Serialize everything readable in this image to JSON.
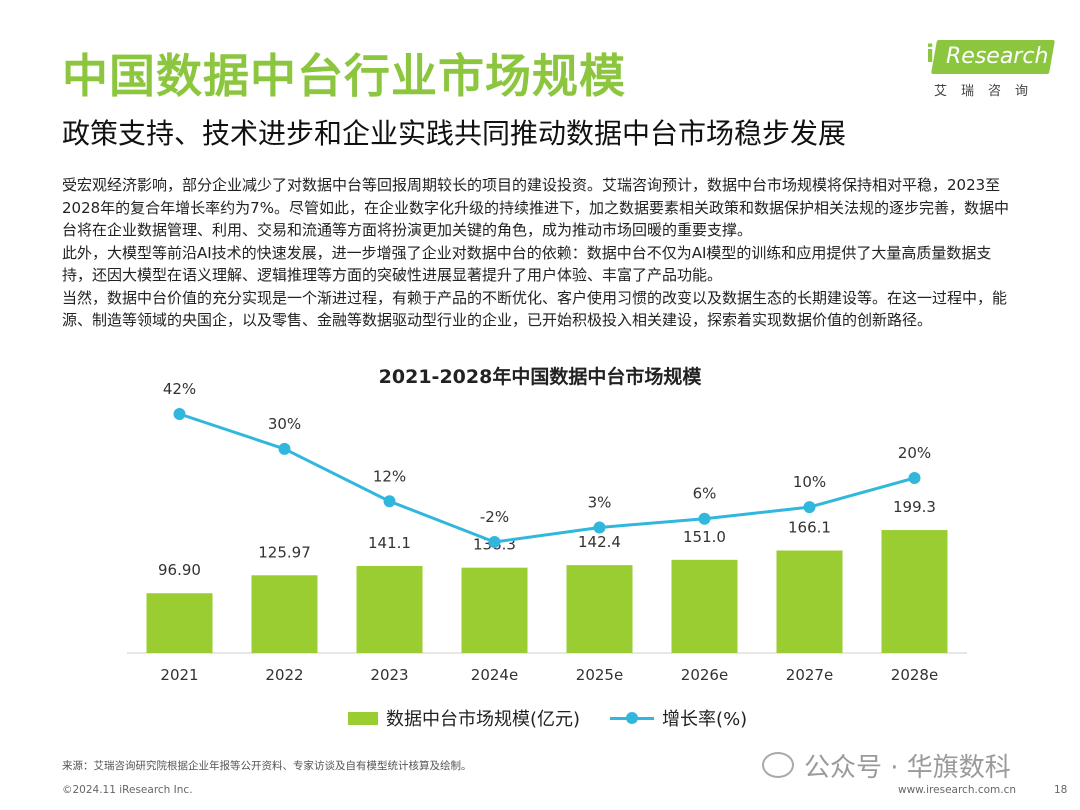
{
  "header": {
    "title": "中国数据中台行业市场规模",
    "subtitle": "政策支持、技术进步和企业实践共同推动数据中台市场稳步发展"
  },
  "logo": {
    "i": "i",
    "name": "Research",
    "cn": "艾瑞咨询"
  },
  "body": {
    "paragraphs": [
      "受宏观经济影响，部分企业减少了对数据中台等回报周期较长的项目的建设投资。艾瑞咨询预计，数据中台市场规模将保持相对平稳，2023至2028年的复合年增长率约为7%。尽管如此，在企业数字化升级的持续推进下，加之数据要素相关政策和数据保护相关法规的逐步完善，数据中台将在企业数据管理、利用、交易和流通等方面将扮演更加关键的角色，成为推动市场回暖的重要支撑。",
      "此外，大模型等前沿AI技术的快速发展，进一步增强了企业对数据中台的依赖：数据中台不仅为AI模型的训练和应用提供了大量高质量数据支持，还因大模型在语义理解、逻辑推理等方面的突破性进展显著提升了用户体验、丰富了产品功能。",
      "当然，数据中台价值的充分实现是一个渐进过程，有赖于产品的不断优化、客户使用习惯的改变以及数据生态的长期建设等。在这一过程中，能源、制造等领域的央国企，以及零售、金融等数据驱动型行业的企业，已开始积极投入相关建设，探索着实现数据价值的创新路径。"
    ]
  },
  "chart_data": {
    "type": "bar",
    "title": "2021-2028年中国数据中台市场规模",
    "categories": [
      "2021",
      "2022",
      "2023",
      "2024e",
      "2025e",
      "2026e",
      "2027e",
      "2028e"
    ],
    "series": [
      {
        "name": "数据中台市场规模(亿元)",
        "type": "bar",
        "values": [
          96.9,
          125.97,
          141.1,
          138.3,
          142.4,
          151.0,
          166.1,
          199.3
        ],
        "labels": [
          "96.90",
          "125.97",
          "141.1",
          "138.3",
          "142.4",
          "151.0",
          "166.1",
          "199.3"
        ],
        "color": "#9acd32"
      },
      {
        "name": "增长率(%)",
        "type": "line",
        "values": [
          42,
          30,
          12,
          -2,
          3,
          6,
          10,
          20
        ],
        "labels": [
          "42%",
          "30%",
          "12%",
          "-2%",
          "3%",
          "6%",
          "10%",
          "20%"
        ],
        "color": "#31b7dc"
      }
    ],
    "legend_position": "bottom",
    "grid": false
  },
  "footer": {
    "source": "来源：艾瑞咨询研究院根据企业年报等公开资料、专家访谈及自有模型统计核算及绘制。",
    "copyright": "©2024.11 iResearch Inc.",
    "website": "www.iresearch.com.cn",
    "page": "18",
    "watermark": "公众号 · 华旗数科"
  }
}
